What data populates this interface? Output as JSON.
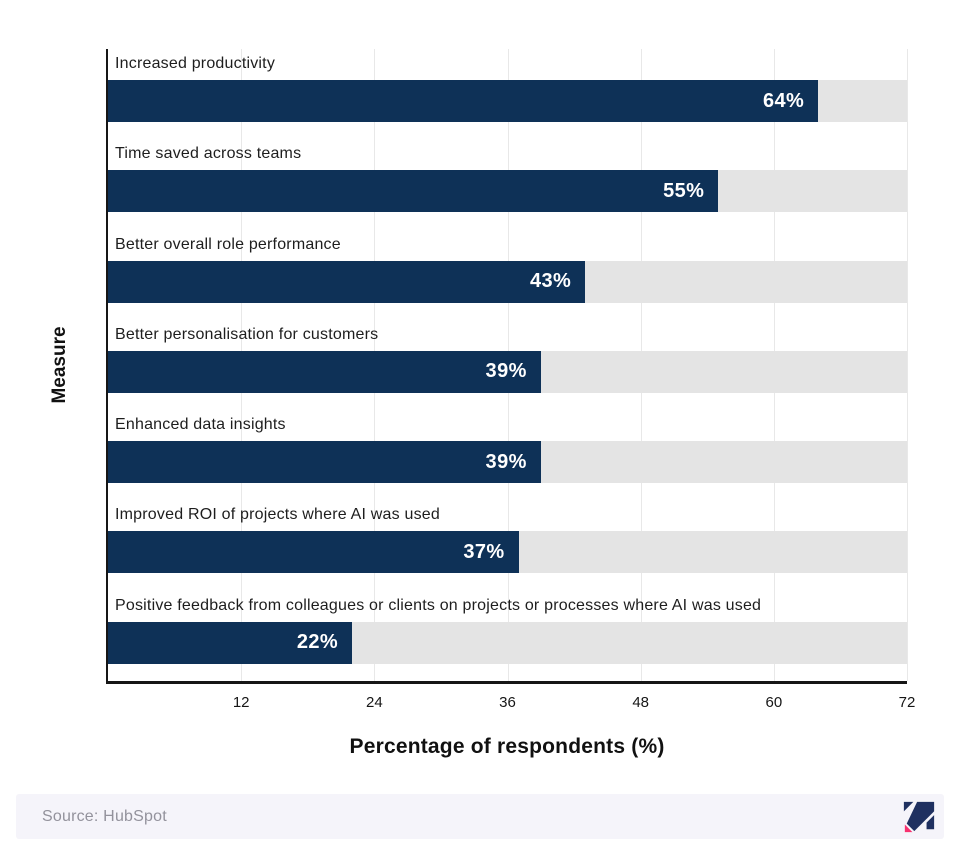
{
  "chart_data": {
    "type": "bar",
    "orientation": "horizontal",
    "title": "",
    "categories": [
      "Increased productivity",
      "Time saved across teams",
      "Better overall role performance",
      "Better personalisation for customers",
      "Enhanced data insights",
      "Improved ROI of projects where AI was used",
      "Positive feedback from colleagues or clients on projects or processes where AI was used"
    ],
    "values": [
      64,
      55,
      43,
      39,
      39,
      37,
      22
    ],
    "value_suffix": "%",
    "xlabel": "Percentage of respondents (%)",
    "ylabel": "Measure",
    "xlim": [
      0,
      72
    ],
    "xticks": [
      12,
      24,
      36,
      48,
      60,
      72
    ],
    "grid": "vertical-gridlines-only",
    "legend": "none",
    "bar_color": "#0e3157",
    "track_color": "#e4e4e4",
    "gridline_color": "#e8e8e8",
    "value_label_color": "#ffffff"
  },
  "footer": {
    "source_text": "Source: HubSpot",
    "background_color": "#f5f4fa",
    "text_color": "#93929c",
    "logo": {
      "name": "brand-logomark",
      "navy_color": "#1f3060",
      "pink_color": "#f8316f"
    }
  }
}
